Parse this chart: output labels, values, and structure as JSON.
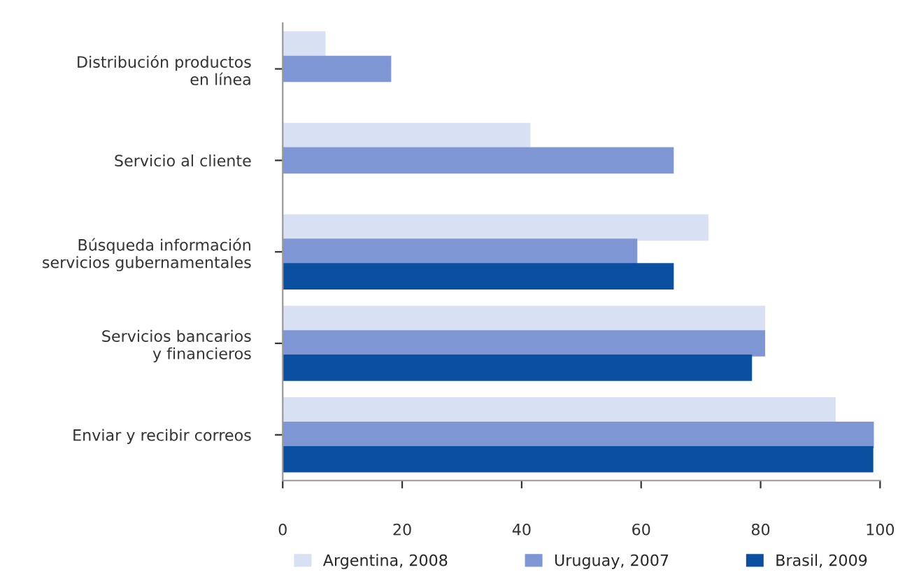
{
  "chart_data": {
    "type": "bar",
    "orientation": "horizontal",
    "categories": [
      "Distribución productos\nen línea",
      "Servicio al cliente",
      "Búsqueda información\nservicios gubernamentales",
      "Servicios bancarios\ny financieros",
      "Enviar y recibir correos"
    ],
    "series": [
      {
        "name": "Argentina, 2008",
        "color": "#d8e0f4",
        "values": [
          7,
          41.3,
          71.1,
          80.6,
          92.4
        ]
      },
      {
        "name": "Uruguay, 2007",
        "color": "#7f96d4",
        "values": [
          18,
          65.3,
          59.2,
          80.6,
          98.8
        ]
      },
      {
        "name": "Brasil, 2009",
        "color": "#0b4fa0",
        "values": [
          null,
          null,
          65.3,
          78.4,
          98.7
        ]
      }
    ],
    "xlim": [
      0,
      100
    ],
    "xticks": [
      0,
      20,
      40,
      60,
      80,
      100
    ],
    "grid": false,
    "legend": "bottom"
  }
}
